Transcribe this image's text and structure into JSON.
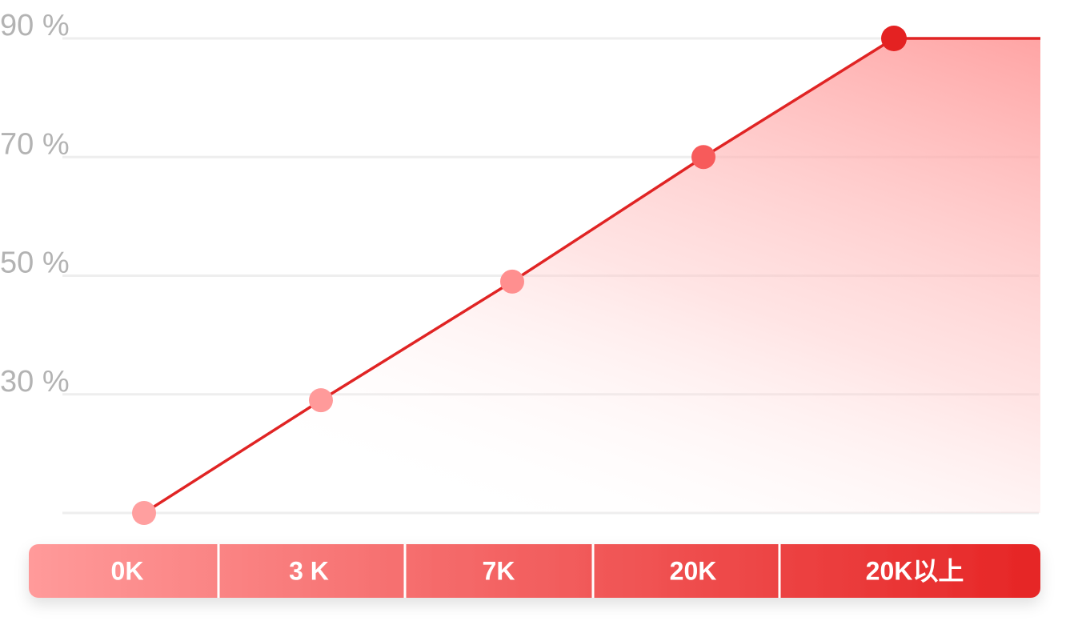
{
  "chart_data": {
    "type": "area",
    "title": "",
    "xlabel": "",
    "ylabel": "",
    "categories": [
      "0K",
      "3 K",
      "7K",
      "20K",
      "20K以上"
    ],
    "y_ticks": [
      {
        "value": 90,
        "label": "90 %"
      },
      {
        "value": 70,
        "label": "70 %"
      },
      {
        "value": 50,
        "label": "50 %"
      },
      {
        "value": 30,
        "label": "30 %"
      }
    ],
    "ylim": [
      10,
      90
    ],
    "grid": true,
    "points": [
      {
        "x": "0K",
        "y": 10
      },
      {
        "x": "3 K",
        "y": 29
      },
      {
        "x": "7K",
        "y": 49
      },
      {
        "x": "20K",
        "y": 70
      },
      {
        "x": "20K以上",
        "y": 90
      }
    ],
    "colors": {
      "line": "#e02424",
      "grid": "#eeeeee",
      "band_start": "#ff9a9a",
      "band_end": "#e62525",
      "point_colors": [
        "#ff9f9f",
        "#ff9a9a",
        "#ff8f8f",
        "#f75b5b",
        "#e42222"
      ]
    }
  }
}
